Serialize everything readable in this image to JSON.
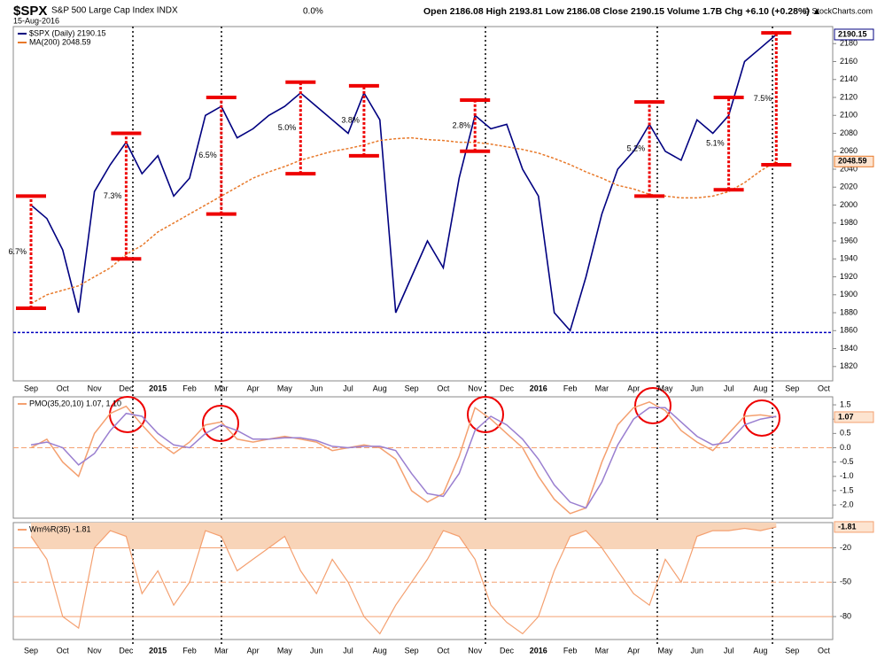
{
  "chart_data": [
    {
      "type": "line",
      "title": "$SPX",
      "subtitle": "S&P 500 Large Cap Index INDX",
      "date": "15-Aug-2016",
      "change_pct": "0.0%",
      "quote": "Open 2186.08  High 2193.81  Low 2186.08  Close 2190.15  Volume 1.7B  Chg +6.10 (+0.28%) ▲",
      "credit": "© StockCharts.com",
      "categories": [
        "Sep",
        null,
        "Oct",
        null,
        "Nov",
        null,
        "Dec",
        null,
        "2015",
        null,
        "Feb",
        null,
        "Mar",
        null,
        "Apr",
        null,
        "May",
        null,
        "Jun",
        null,
        "Jul",
        null,
        "Aug",
        null,
        "Sep",
        null,
        "Oct",
        null,
        "Nov",
        null,
        "Dec",
        null,
        "2016",
        null,
        "Feb",
        null,
        "Mar",
        null,
        "Apr",
        null,
        "May",
        null,
        "Jun",
        null,
        "Jul",
        null,
        "Aug",
        null,
        "Sep",
        null,
        "Oct",
        null
      ],
      "series": [
        {
          "name": "$SPX (Daily) 2190.15",
          "color": "#000080",
          "tag": "2190.15",
          "values": [
            2000,
            1985,
            1950,
            1880,
            2015,
            2045,
            2070,
            2035,
            2055,
            2010,
            2030,
            2100,
            2110,
            2075,
            2085,
            2100,
            2110,
            2125,
            2110,
            2095,
            2080,
            2125,
            2095,
            1880,
            1920,
            1960,
            1930,
            2030,
            2100,
            2085,
            2090,
            2040,
            2010,
            1880,
            1860,
            1920,
            1990,
            2040,
            2060,
            2090,
            2060,
            2050,
            2095,
            2080,
            2100,
            2160,
            2175,
            2190.15,
            null,
            null,
            null,
            null
          ]
        },
        {
          "name": "MA(200) 2048.59",
          "color": "#e8792a",
          "tag": "2048.59",
          "values": [
            1890,
            1900,
            1905,
            1910,
            1920,
            1930,
            1945,
            1955,
            1970,
            1980,
            1990,
            2000,
            2010,
            2020,
            2030,
            2037,
            2043,
            2050,
            2055,
            2060,
            2063,
            2067,
            2072,
            2074,
            2075,
            2073,
            2072,
            2070,
            2070,
            2068,
            2065,
            2062,
            2058,
            2052,
            2045,
            2037,
            2030,
            2022,
            2018,
            2012,
            2010,
            2008,
            2008,
            2010,
            2015,
            2025,
            2038,
            2048.59,
            null,
            null,
            null,
            null
          ]
        }
      ],
      "hlines": [
        1858
      ],
      "ranges": [
        {
          "label": "6.7%",
          "at": 0,
          "low": 1885,
          "high": 2010
        },
        {
          "label": "7.3%",
          "at": 6,
          "low": 1940,
          "high": 2080
        },
        {
          "label": "6.5%",
          "at": 12,
          "low": 1990,
          "high": 2120
        },
        {
          "label": "5.0%",
          "at": 17,
          "low": 2035,
          "high": 2137
        },
        {
          "label": "3.8%",
          "at": 21,
          "low": 2055,
          "high": 2133
        },
        {
          "label": "2.8%",
          "at": 28,
          "low": 2060,
          "high": 2117
        },
        {
          "label": "5.2%",
          "at": 39,
          "low": 2010,
          "high": 2115
        },
        {
          "label": "5.1%",
          "at": 44,
          "low": 2017,
          "high": 2120
        },
        {
          "label": "7.5%",
          "at": 47,
          "low": 2045,
          "high": 2192
        }
      ],
      "ylim": [
        1804,
        2199
      ],
      "yticks": [
        1820,
        1840,
        1860,
        1880,
        1900,
        1920,
        1940,
        1960,
        1980,
        2000,
        2020,
        2040,
        2060,
        2080,
        2100,
        2120,
        2140,
        2160,
        2180
      ]
    },
    {
      "type": "line",
      "title": "PMO(35,20,10) 1.07, 1.10",
      "tag": "1.07",
      "series": [
        {
          "color": "#f4a070",
          "values": [
            0.0,
            0.3,
            -0.5,
            -1.0,
            0.5,
            1.2,
            1.45,
            0.8,
            0.2,
            -0.2,
            0.2,
            0.8,
            0.9,
            0.3,
            0.2,
            0.3,
            0.4,
            0.3,
            0.2,
            -0.1,
            0.0,
            0.1,
            0.0,
            -0.4,
            -1.5,
            -1.9,
            -1.6,
            -0.3,
            1.4,
            1.0,
            0.5,
            0.0,
            -1.0,
            -1.8,
            -2.3,
            -2.1,
            -0.5,
            0.8,
            1.4,
            1.6,
            1.3,
            0.6,
            0.2,
            -0.1,
            0.5,
            1.1,
            1.15,
            1.07,
            null,
            null,
            null,
            null
          ]
        },
        {
          "color": "#9a7fd0",
          "values": [
            0.1,
            0.2,
            0.0,
            -0.6,
            -0.2,
            0.6,
            1.2,
            1.1,
            0.5,
            0.1,
            0.0,
            0.5,
            0.8,
            0.6,
            0.3,
            0.3,
            0.35,
            0.35,
            0.25,
            0.05,
            0.0,
            0.05,
            0.05,
            -0.1,
            -0.9,
            -1.6,
            -1.7,
            -0.9,
            0.6,
            1.1,
            0.8,
            0.3,
            -0.4,
            -1.3,
            -1.9,
            -2.1,
            -1.2,
            0.1,
            1.0,
            1.4,
            1.4,
            0.9,
            0.4,
            0.1,
            0.2,
            0.8,
            1.0,
            1.1,
            null,
            null,
            null,
            null
          ]
        }
      ],
      "hlines": [
        0
      ],
      "ylim": [
        -2.46,
        1.78
      ],
      "yticks": [
        {
          "value": 1.5,
          "label": "1.5"
        },
        {
          "value": 1,
          "label": "1.0"
        },
        {
          "value": 0.5,
          "label": "0.5"
        },
        {
          "value": 0,
          "label": "0.0"
        },
        {
          "value": -0.5,
          "label": "-0.5"
        },
        {
          "value": -1,
          "label": "-1.0"
        },
        {
          "value": -1.5,
          "label": "-1.5"
        },
        {
          "value": -2,
          "label": "-2.0"
        }
      ]
    },
    {
      "type": "area",
      "title": "Wm%R(35) -1.81",
      "tag": "-1.81",
      "color": "#f4a070",
      "fill": "#f8d4b8",
      "categories": [
        "Sep",
        null,
        "Oct",
        null,
        "Nov",
        null,
        "Dec",
        null,
        "2015",
        null,
        "Feb",
        null,
        "Mar",
        null,
        "Apr",
        null,
        "May",
        null,
        "Jun",
        null,
        "Jul",
        null,
        "Aug",
        null,
        "Sep",
        null,
        "Oct",
        null,
        "Nov",
        null,
        "Dec",
        null,
        "2016",
        null,
        "Feb",
        null,
        "Mar",
        null,
        "Apr",
        null,
        "May",
        null,
        "Jun",
        null,
        "Jul",
        null,
        "Aug",
        null,
        "Sep",
        null,
        "Oct",
        null
      ],
      "values": [
        -10,
        -30,
        -80,
        -90,
        -20,
        -5,
        -10,
        -60,
        -40,
        -70,
        -50,
        -5,
        -10,
        -40,
        -30,
        -20,
        -10,
        -40,
        -60,
        -30,
        -50,
        -80,
        -95,
        -70,
        -50,
        -30,
        -5,
        -10,
        -30,
        -70,
        -85,
        -95,
        -80,
        -40,
        -10,
        -5,
        -20,
        -40,
        -60,
        -70,
        -30,
        -50,
        -10,
        -5,
        -5,
        -3,
        -5,
        -1.81,
        null,
        null,
        null,
        null
      ],
      "ylim": [
        -100,
        2
      ],
      "yticks": [
        -20,
        -50,
        -80
      ]
    }
  ]
}
